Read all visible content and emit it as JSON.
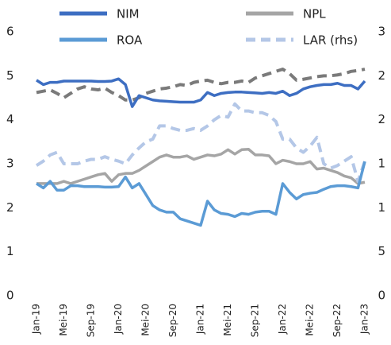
{
  "chart_data": {
    "type": "line",
    "categories": [
      "Jan-19",
      null,
      null,
      null,
      "Mei-19",
      null,
      null,
      null,
      "Sep-19",
      null,
      null,
      null,
      "Jan-20",
      null,
      null,
      null,
      "Mei-20",
      null,
      null,
      null,
      "Sep-20",
      null,
      null,
      null,
      "Jan-21",
      null,
      null,
      null,
      "Mei-21",
      null,
      null,
      null,
      "Sep-21",
      null,
      null,
      null,
      "Jan-22",
      null,
      null,
      null,
      "Mei-22",
      null,
      null,
      null,
      "Sep-22",
      null,
      null,
      null,
      "Jan-23"
    ],
    "ylim": [
      0,
      6
    ],
    "yticks": [
      0,
      1,
      2,
      3,
      4,
      5,
      6
    ],
    "y2lim": [
      0,
      30
    ],
    "y2ticks": [
      0,
      5,
      {
        "value": 10,
        "label": "1"
      },
      {
        "value": 15,
        "label": "1"
      },
      {
        "value": 20,
        "label": "2"
      },
      {
        "value": 25,
        "label": "2"
      },
      {
        "value": 30,
        "label": "3"
      }
    ],
    "grid": false,
    "legend": "top",
    "series": [
      {
        "name": "NIM",
        "color": "#3d6ec2",
        "dashed": false,
        "values": [
          4.9,
          4.8,
          4.85,
          4.85,
          4.88,
          4.88,
          4.88,
          4.88,
          4.88,
          4.87,
          4.87,
          4.88,
          4.93,
          4.8,
          4.3,
          4.55,
          4.5,
          4.45,
          4.43,
          4.42,
          4.41,
          4.4,
          4.4,
          4.4,
          4.45,
          4.62,
          4.55,
          4.6,
          4.62,
          4.63,
          4.63,
          4.62,
          4.61,
          4.6,
          4.62,
          4.6,
          4.65,
          4.55,
          4.6,
          4.7,
          4.75,
          4.78,
          4.8,
          4.8,
          4.83,
          4.78,
          4.78,
          4.7,
          4.88
        ]
      },
      {
        "name": "NPL",
        "color": "#a5a5a5",
        "dashed": false,
        "values": [
          2.55,
          2.55,
          2.55,
          2.55,
          2.6,
          2.55,
          2.6,
          2.65,
          2.7,
          2.75,
          2.78,
          2.6,
          2.75,
          2.78,
          2.78,
          2.85,
          2.95,
          3.05,
          3.15,
          3.2,
          3.15,
          3.15,
          3.18,
          3.1,
          3.15,
          3.2,
          3.18,
          3.22,
          3.32,
          3.22,
          3.32,
          3.33,
          3.2,
          3.2,
          3.18,
          3.0,
          3.08,
          3.05,
          3.0,
          3.0,
          3.05,
          2.88,
          2.9,
          2.85,
          2.8,
          2.72,
          2.68,
          2.55,
          2.58
        ]
      },
      {
        "name": "ROA",
        "color": "#5b9bd5",
        "dashed": false,
        "values": [
          2.55,
          2.45,
          2.6,
          2.4,
          2.4,
          2.5,
          2.5,
          2.48,
          2.48,
          2.48,
          2.47,
          2.47,
          2.48,
          2.7,
          2.45,
          2.55,
          2.3,
          2.05,
          1.95,
          1.9,
          1.9,
          1.75,
          1.7,
          1.65,
          1.6,
          2.15,
          1.95,
          1.87,
          1.85,
          1.8,
          1.87,
          1.85,
          1.9,
          1.92,
          1.92,
          1.85,
          2.55,
          2.35,
          2.2,
          2.3,
          2.33,
          2.35,
          2.42,
          2.48,
          2.5,
          2.5,
          2.48,
          2.45,
          3.05
        ]
      },
      {
        "name": "LAR (rhs)",
        "color": "#b4c7e7",
        "dashed": true,
        "axis": "y2",
        "values": [
          14.8,
          15.3,
          16,
          16.3,
          15,
          15,
          15,
          15.3,
          15.5,
          15.5,
          15.8,
          15.5,
          15.3,
          15,
          16,
          16.8,
          17.5,
          17.8,
          19.3,
          19.3,
          19,
          18.8,
          18.8,
          19,
          18.8,
          19.3,
          20,
          20.5,
          20.3,
          21.8,
          21,
          21,
          20.8,
          20.8,
          20.5,
          19.8,
          17.8,
          17.8,
          16.8,
          16.3,
          17,
          18,
          15,
          14.5,
          14.8,
          15.3,
          15.8,
          13,
          15.3
        ]
      },
      {
        "color": "#7a7a7a",
        "dashed": true,
        "values": [
          4.62,
          4.65,
          4.68,
          4.6,
          4.5,
          4.6,
          4.7,
          4.75,
          4.7,
          4.68,
          4.72,
          4.62,
          4.55,
          4.45,
          4.45,
          4.5,
          4.6,
          4.65,
          4.7,
          4.72,
          4.75,
          4.8,
          4.78,
          4.85,
          4.88,
          4.9,
          4.85,
          4.82,
          4.85,
          4.85,
          4.88,
          4.85,
          4.95,
          5.0,
          5.05,
          5.1,
          5.15,
          5.05,
          4.9,
          4.92,
          4.95,
          4.98,
          5.0,
          5.0,
          5.02,
          5.05,
          5.1,
          5.12,
          5.15
        ]
      }
    ]
  }
}
